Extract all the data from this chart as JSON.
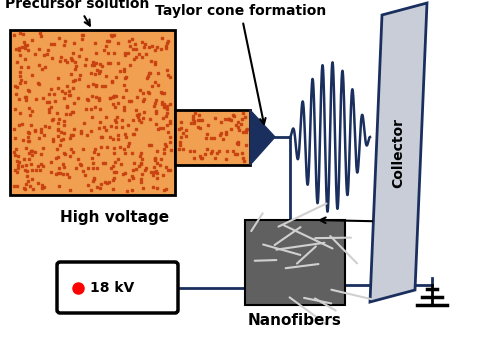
{
  "bg_color": "#ffffff",
  "dark_blue": "#1a2f5e",
  "arrow_color": "#333333",
  "precursor_label": "Precursor solution",
  "taylor_label": "Taylor cone formation",
  "high_voltage_label": "High voltage",
  "voltage_value": "18 kV",
  "nanofibers_label": "Nanofibers",
  "collector_label": "Collector",
  "orange_fill": "#f0a050",
  "orange_stipple": "#c84010",
  "collector_face": "#c8cdd8",
  "collector_edge": "#1a2f5e",
  "sem_face": "#606060",
  "ground_color": "#000000"
}
